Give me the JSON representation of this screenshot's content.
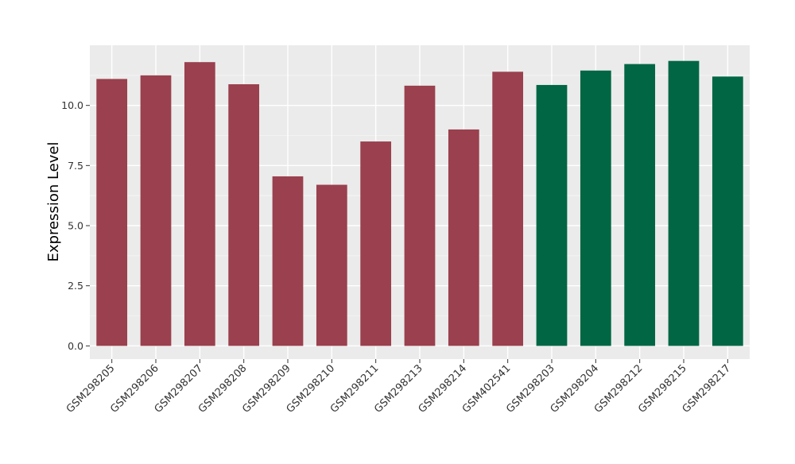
{
  "chart_data": {
    "type": "bar",
    "title": "",
    "xlabel": "",
    "ylabel": "Expression Level",
    "ylim": [
      -0.55,
      12.5
    ],
    "yticks": [
      "0.0",
      "2.5",
      "5.0",
      "7.5",
      "10.0"
    ],
    "ytick_values": [
      0,
      2.5,
      5.0,
      7.5,
      10.0
    ],
    "grid": true,
    "legend": "none",
    "colors": {
      "group1": "#9A404E",
      "group2": "#006644",
      "panel_background": "#EBEBEB",
      "grid_major": "#FFFFFF"
    },
    "categories": [
      "GSM298205",
      "GSM298206",
      "GSM298207",
      "GSM298208",
      "GSM298209",
      "GSM298210",
      "GSM298211",
      "GSM298213",
      "GSM298214",
      "GSM402541",
      "GSM298203",
      "GSM298204",
      "GSM298212",
      "GSM298215",
      "GSM298217"
    ],
    "values": [
      11.1,
      11.25,
      11.8,
      10.88,
      7.05,
      6.7,
      8.5,
      10.82,
      9.0,
      11.4,
      10.85,
      11.45,
      11.72,
      11.85,
      11.2
    ],
    "groups": [
      1,
      1,
      1,
      1,
      1,
      1,
      1,
      1,
      1,
      1,
      2,
      2,
      2,
      2,
      2
    ]
  }
}
